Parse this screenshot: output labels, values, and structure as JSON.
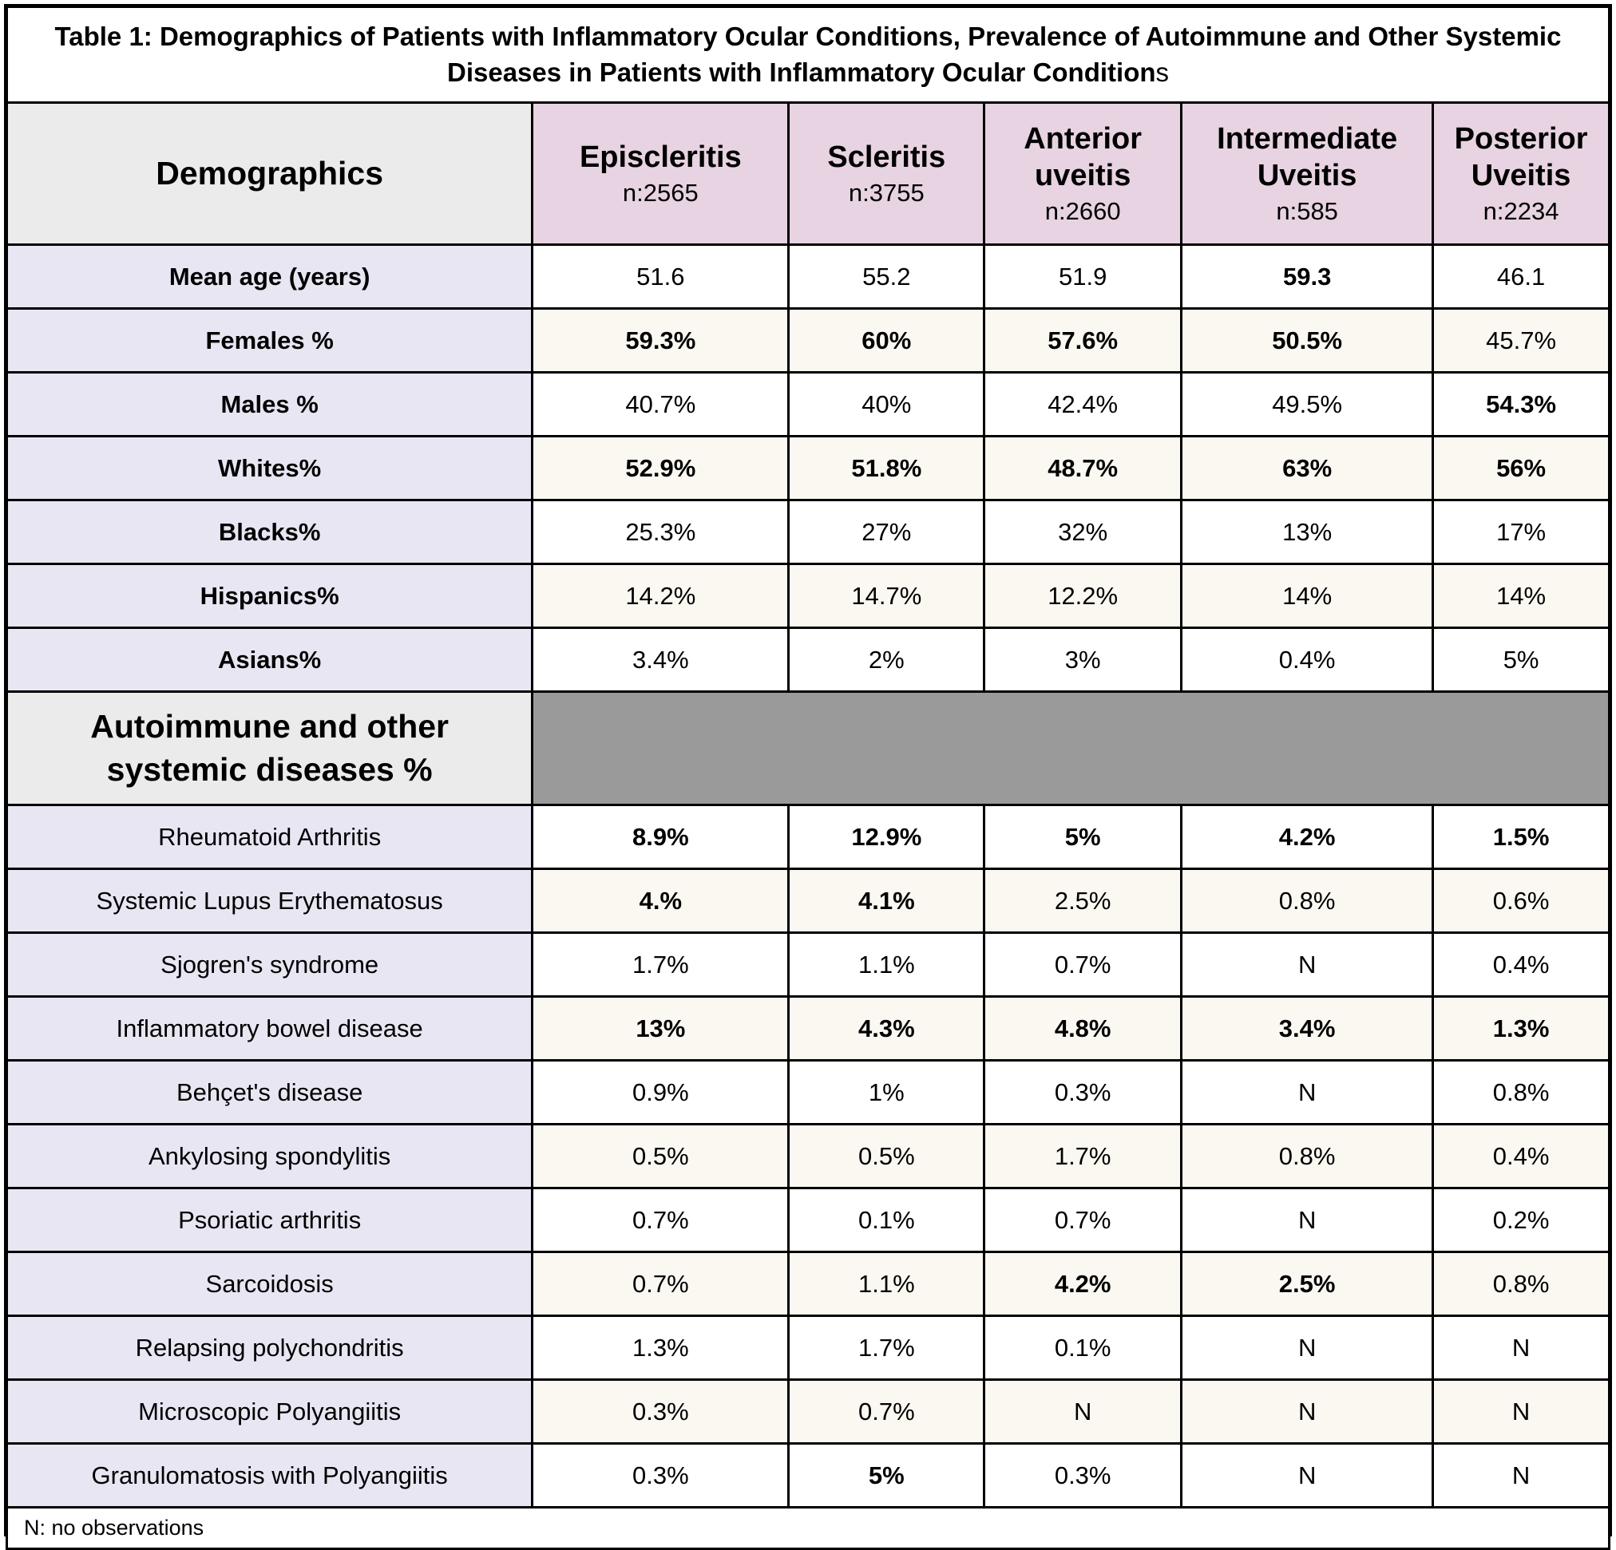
{
  "title": {
    "text_bold": "Table 1: Demographics of Patients with Inflammatory Ocular Conditions, Prevalence of Autoimmune and Other Systemic Diseases in Patients with Inflammatory Ocular Condition",
    "text_regular_suffix": "s"
  },
  "header": {
    "row_label_column": "Demographics",
    "condition_columns": [
      {
        "label": "Episcleritis",
        "n": "n:2565"
      },
      {
        "label": "Scleritis",
        "n": "n:3755"
      },
      {
        "label": "Anterior uveitis",
        "n": "n:2660"
      },
      {
        "label": "Intermediate Uveitis",
        "n": "n:585"
      },
      {
        "label": "Posterior Uveitis",
        "n": "n:2234"
      }
    ]
  },
  "demographics_rows": [
    {
      "label": "Mean age (years)",
      "cells": [
        {
          "t": "51.6",
          "b": false
        },
        {
          "t": "55.2",
          "b": false
        },
        {
          "t": "51.9",
          "b": false
        },
        {
          "t": "59.3",
          "b": true
        },
        {
          "t": "46.1",
          "b": false
        }
      ]
    },
    {
      "label": "Females %",
      "cells": [
        {
          "t": "59.3%",
          "b": true
        },
        {
          "t": "60%",
          "b": true
        },
        {
          "t": "57.6%",
          "b": true
        },
        {
          "t": "50.5%",
          "b": true
        },
        {
          "t": "45.7%",
          "b": false
        }
      ]
    },
    {
      "label": "Males %",
      "cells": [
        {
          "t": "40.7%",
          "b": false
        },
        {
          "t": "40%",
          "b": false
        },
        {
          "t": "42.4%",
          "b": false
        },
        {
          "t": "49.5%",
          "b": false
        },
        {
          "t": "54.3%",
          "b": true
        }
      ]
    },
    {
      "label": "Whites%",
      "cells": [
        {
          "t": "52.9%",
          "b": true
        },
        {
          "t": "51.8%",
          "b": true
        },
        {
          "t": "48.7%",
          "b": true
        },
        {
          "t": "63%",
          "b": true
        },
        {
          "t": "56%",
          "b": true
        }
      ]
    },
    {
      "label": "Blacks%",
      "cells": [
        {
          "t": "25.3%",
          "b": false
        },
        {
          "t": "27%",
          "b": false
        },
        {
          "t": "32%",
          "b": false
        },
        {
          "t": "13%",
          "b": false
        },
        {
          "t": "17%",
          "b": false
        }
      ]
    },
    {
      "label": "Hispanics%",
      "cells": [
        {
          "t": "14.2%",
          "b": false
        },
        {
          "t": "14.7%",
          "b": false
        },
        {
          "t": "12.2%",
          "b": false
        },
        {
          "t": "14%",
          "b": false
        },
        {
          "t": "14%",
          "b": false
        }
      ]
    },
    {
      "label": "Asians%",
      "cells": [
        {
          "t": "3.4%",
          "b": false
        },
        {
          "t": "2%",
          "b": false
        },
        {
          "t": "3%",
          "b": false
        },
        {
          "t": "0.4%",
          "b": false
        },
        {
          "t": "5%",
          "b": false
        }
      ]
    }
  ],
  "section_header": {
    "label": "Autoimmune and other systemic diseases %"
  },
  "autoimmune_rows": [
    {
      "label": "Rheumatoid Arthritis",
      "cells": [
        {
          "t": "8.9%",
          "b": true
        },
        {
          "t": "12.9%",
          "b": true
        },
        {
          "t": "5%",
          "b": true
        },
        {
          "t": "4.2%",
          "b": true
        },
        {
          "t": "1.5%",
          "b": true
        }
      ]
    },
    {
      "label": "Systemic Lupus Erythematosus",
      "cells": [
        {
          "t": "4.%",
          "b": true
        },
        {
          "t": "4.1%",
          "b": true
        },
        {
          "t": "2.5%",
          "b": false
        },
        {
          "t": "0.8%",
          "b": false
        },
        {
          "t": "0.6%",
          "b": false
        }
      ]
    },
    {
      "label": "Sjogren's syndrome",
      "cells": [
        {
          "t": "1.7%",
          "b": false
        },
        {
          "t": "1.1%",
          "b": false
        },
        {
          "t": "0.7%",
          "b": false
        },
        {
          "t": "N",
          "b": false
        },
        {
          "t": "0.4%",
          "b": false
        }
      ]
    },
    {
      "label": "Inflammatory bowel disease",
      "cells": [
        {
          "t": "13%",
          "b": true
        },
        {
          "t": "4.3%",
          "b": true
        },
        {
          "t": "4.8%",
          "b": true
        },
        {
          "t": "3.4%",
          "b": true
        },
        {
          "t": "1.3%",
          "b": true
        }
      ]
    },
    {
      "label": "Behçet's disease",
      "cells": [
        {
          "t": "0.9%",
          "b": false
        },
        {
          "t": "1%",
          "b": false
        },
        {
          "t": "0.3%",
          "b": false
        },
        {
          "t": "N",
          "b": false
        },
        {
          "t": "0.8%",
          "b": false
        }
      ]
    },
    {
      "label": "Ankylosing spondylitis",
      "cells": [
        {
          "t": "0.5%",
          "b": false
        },
        {
          "t": "0.5%",
          "b": false
        },
        {
          "t": "1.7%",
          "b": false
        },
        {
          "t": "0.8%",
          "b": false
        },
        {
          "t": "0.4%",
          "b": false
        }
      ]
    },
    {
      "label": "Psoriatic arthritis",
      "cells": [
        {
          "t": "0.7%",
          "b": false
        },
        {
          "t": "0.1%",
          "b": false
        },
        {
          "t": "0.7%",
          "b": false
        },
        {
          "t": "N",
          "b": false
        },
        {
          "t": "0.2%",
          "b": false
        }
      ]
    },
    {
      "label": "Sarcoidosis",
      "cells": [
        {
          "t": "0.7%",
          "b": false
        },
        {
          "t": "1.1%",
          "b": false
        },
        {
          "t": "4.2%",
          "b": true
        },
        {
          "t": "2.5%",
          "b": true
        },
        {
          "t": "0.8%",
          "b": false
        }
      ]
    },
    {
      "label": "Relapsing polychondritis",
      "cells": [
        {
          "t": "1.3%",
          "b": false
        },
        {
          "t": "1.7%",
          "b": false
        },
        {
          "t": "0.1%",
          "b": false
        },
        {
          "t": "N",
          "b": false
        },
        {
          "t": "N",
          "b": false
        }
      ]
    },
    {
      "label": "Microscopic Polyangiitis",
      "cells": [
        {
          "t": "0.3%",
          "b": false
        },
        {
          "t": "0.7%",
          "b": false
        },
        {
          "t": "N",
          "b": false
        },
        {
          "t": "N",
          "b": false
        },
        {
          "t": "N",
          "b": false
        }
      ]
    },
    {
      "label": "Granulomatosis with Polyangiitis",
      "cells": [
        {
          "t": "0.3%",
          "b": false
        },
        {
          "t": "5%",
          "b": true
        },
        {
          "t": "0.3%",
          "b": false
        },
        {
          "t": "N",
          "b": false
        },
        {
          "t": "N",
          "b": false
        }
      ]
    }
  ],
  "footnote": "N: no observations",
  "colors": {
    "condition_header_pink": "#e7d3e1",
    "row_label_lavender": "#e8e6f2",
    "corner_header_grey": "#ebebeb",
    "section_band_grey": "#9a9a9a",
    "row_stripe_cream": "#faf8f1",
    "border_black": "#000000"
  }
}
